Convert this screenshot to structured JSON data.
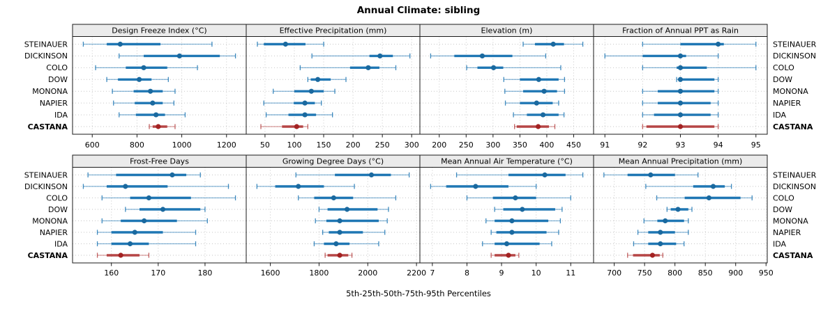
{
  "title": "Annual Climate: sibling",
  "axis_title": "5th-25th-50th-75th-95th Percentiles",
  "colors": {
    "series": "#1f77b4",
    "series_dot": "#1a699f",
    "highlight": "#b64545",
    "highlight_dot": "#a32222",
    "header_bg": "#ebebeb",
    "grid": "#c6c6c6",
    "border": "#1a1a1a"
  },
  "chart_data": {
    "type": "boxplot",
    "title": "Annual Climate: sibling",
    "xlabel": "5th-25th-50th-75th-95th Percentiles",
    "layout": {
      "grid_rows": 2,
      "grid_cols": 4,
      "legend": "none",
      "grid": "dotted",
      "orientation": "horizontal"
    },
    "percentiles": [
      "5th",
      "25th",
      "50th",
      "75th",
      "95th"
    ],
    "categories": [
      "STEINAUER",
      "DICKINSON",
      "COLO",
      "DOW",
      "MONONA",
      "NAPIER",
      "IDA",
      "CASTANA"
    ],
    "highlight_category": "CASTANA",
    "panels": [
      {
        "title": "Design Freeze Index (°C)",
        "xlim": [
          512,
          1288
        ],
        "xticks": [
          600,
          800,
          1000,
          1200
        ],
        "values": {
          "STEINAUER": [
            560,
            665,
            725,
            905,
            1135
          ],
          "DICKINSON": [
            720,
            830,
            990,
            1170,
            1240
          ],
          "COLO": [
            615,
            750,
            830,
            935,
            1070
          ],
          "DOW": [
            665,
            715,
            810,
            865,
            940
          ],
          "MONONA": [
            690,
            785,
            860,
            915,
            970
          ],
          "NAPIER": [
            695,
            790,
            870,
            915,
            965
          ],
          "IDA": [
            720,
            795,
            885,
            925,
            1015
          ],
          "CASTANA": [
            855,
            870,
            895,
            935,
            970
          ]
        }
      },
      {
        "title": "Effective Precipitation (mm)",
        "xlim": [
          18,
          314
        ],
        "xticks": [
          50,
          100,
          150,
          200,
          250,
          300
        ],
        "values": {
          "STEINAUER": [
            37,
            48,
            85,
            119,
            150
          ],
          "DICKINSON": [
            130,
            228,
            246,
            268,
            297
          ],
          "COLO": [
            110,
            195,
            226,
            245,
            273
          ],
          "DOW": [
            123,
            128,
            140,
            162,
            188
          ],
          "MONONA": [
            64,
            100,
            129,
            150,
            169
          ],
          "NAPIER": [
            48,
            99,
            118,
            135,
            146
          ],
          "IDA": [
            52,
            90,
            118,
            137,
            165
          ],
          "CASTANA": [
            43,
            79,
            104,
            115,
            123
          ]
        }
      },
      {
        "title": "Elevation (m)",
        "xlim": [
          164,
          487
        ],
        "xticks": [
          200,
          250,
          300,
          350,
          400,
          450
        ],
        "values": {
          "STEINAUER": [
            356,
            378,
            412,
            432,
            467
          ],
          "DICKINSON": [
            184,
            228,
            280,
            336,
            398
          ],
          "COLO": [
            251,
            271,
            301,
            319,
            426
          ],
          "DOW": [
            320,
            350,
            385,
            422,
            433
          ],
          "MONONA": [
            322,
            356,
            395,
            419,
            433
          ],
          "NAPIER": [
            323,
            350,
            381,
            411,
            422
          ],
          "IDA": [
            338,
            363,
            393,
            422,
            432
          ],
          "CASTANA": [
            340,
            344,
            384,
            404,
            415
          ]
        }
      },
      {
        "title": "Fraction of Annual PPT as Rain",
        "xlim": [
          90.7,
          95.3
        ],
        "xticks": [
          91,
          92,
          93,
          94,
          95
        ],
        "values": {
          "STEINAUER": [
            92,
            93,
            94,
            94.15,
            95
          ],
          "DICKINSON": [
            91,
            92,
            93,
            93.15,
            94
          ],
          "COLO": [
            92,
            92.9,
            93,
            93.7,
            95
          ],
          "DOW": [
            92.9,
            92.95,
            93,
            93.9,
            94
          ],
          "MONONA": [
            92,
            92.4,
            93,
            93.9,
            94
          ],
          "NAPIER": [
            92,
            92.4,
            93,
            93.8,
            94
          ],
          "IDA": [
            92,
            92.3,
            93,
            93.8,
            94
          ],
          "CASTANA": [
            92,
            92.1,
            93,
            93.9,
            94
          ]
        }
      },
      {
        "title": "Frost-Free Days",
        "xlim": [
          151.7,
          188.8
        ],
        "xticks": [
          160,
          170,
          180
        ],
        "values": {
          "STEINAUER": [
            155,
            161,
            173,
            176,
            179
          ],
          "DICKINSON": [
            154,
            159,
            163,
            172,
            185
          ],
          "COLO": [
            158,
            164,
            168,
            177,
            186.5
          ],
          "DOW": [
            163,
            166,
            171,
            179,
            180
          ],
          "MONONA": [
            158,
            162,
            167,
            174,
            180.5
          ],
          "NAPIER": [
            157,
            160,
            165,
            171,
            178
          ],
          "IDA": [
            157,
            160,
            164,
            168,
            178
          ],
          "CASTANA": [
            157,
            159,
            162,
            166,
            168
          ]
        }
      },
      {
        "title": "Growing Degree Days (°C)",
        "xlim": [
          1501,
          2214
        ],
        "xticks": [
          1600,
          1800,
          2000,
          2200
        ],
        "values": {
          "STEINAUER": [
            1705,
            1865,
            2015,
            2095,
            2170
          ],
          "DICKINSON": [
            1545,
            1620,
            1715,
            1820,
            1945
          ],
          "COLO": [
            1715,
            1780,
            1860,
            1940,
            2115
          ],
          "DOW": [
            1800,
            1835,
            1915,
            2040,
            2085
          ],
          "MONONA": [
            1785,
            1830,
            1885,
            2045,
            2080
          ],
          "NAPIER": [
            1815,
            1840,
            1885,
            1980,
            2070
          ],
          "IDA": [
            1780,
            1820,
            1870,
            1925,
            2045
          ],
          "CASTANA": [
            1825,
            1835,
            1885,
            1920,
            1935
          ]
        }
      },
      {
        "title": "Mean Annual Air Temperature (°C)",
        "xlim": [
          6.64,
          11.66
        ],
        "xticks": [
          7,
          8,
          9,
          10,
          11
        ],
        "values": {
          "STEINAUER": [
            7.7,
            9.2,
            10.25,
            10.85,
            11.35
          ],
          "DICKINSON": [
            6.95,
            7.4,
            8.25,
            9.2,
            10
          ],
          "COLO": [
            8,
            8.75,
            9.4,
            10,
            11
          ],
          "DOW": [
            8.8,
            9.05,
            9.6,
            10.55,
            10.75
          ],
          "MONONA": [
            8.55,
            8.8,
            9.3,
            10.35,
            10.7
          ],
          "NAPIER": [
            8.7,
            8.85,
            9.3,
            10.3,
            10.65
          ],
          "IDA": [
            8.45,
            8.8,
            9.15,
            10.1,
            10.45
          ],
          "CASTANA": [
            8.7,
            8.8,
            9.2,
            9.4,
            9.5
          ]
        }
      },
      {
        "title": "Mean Annual Precipitation (mm)",
        "xlim": [
          666,
          952
        ],
        "xticks": [
          700,
          750,
          800,
          850,
          900,
          950
        ],
        "values": {
          "STEINAUER": [
            683,
            722,
            760,
            800,
            838
          ],
          "DICKINSON": [
            752,
            830,
            863,
            882,
            893
          ],
          "COLO": [
            770,
            816,
            856,
            908,
            927
          ],
          "DOW": [
            787,
            793,
            805,
            822,
            828
          ],
          "MONONA": [
            749,
            771,
            784,
            815,
            822
          ],
          "NAPIER": [
            739,
            756,
            776,
            800,
            822
          ],
          "IDA": [
            732,
            756,
            776,
            802,
            815
          ],
          "CASTANA": [
            722,
            731,
            763,
            775,
            780
          ]
        }
      }
    ]
  }
}
